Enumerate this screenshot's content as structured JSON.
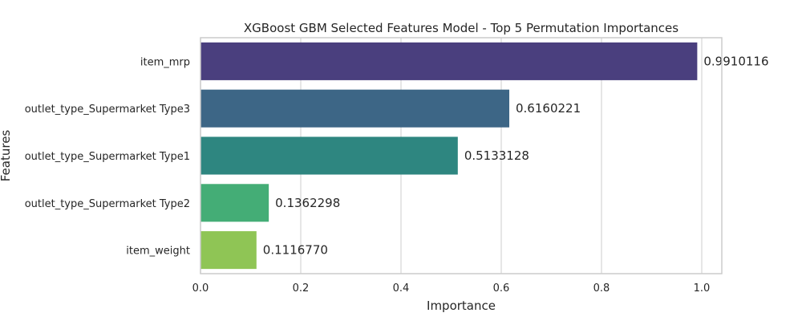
{
  "chart_data": {
    "type": "bar",
    "orientation": "horizontal",
    "title": "XGBoost GBM Selected Features Model - Top 5 Permutation Importances",
    "xlabel": "Importance",
    "ylabel": "Features",
    "xlim": [
      0,
      1.04
    ],
    "xticks": [
      0.0,
      0.2,
      0.4,
      0.6,
      0.8,
      1.0
    ],
    "xtick_labels": [
      "0.0",
      "0.2",
      "0.4",
      "0.6",
      "0.8",
      "1.0"
    ],
    "grid": true,
    "categories": [
      "item_mrp",
      "outlet_type_Supermarket Type3",
      "outlet_type_Supermarket Type1",
      "outlet_type_Supermarket Type2",
      "item_weight"
    ],
    "values": [
      0.9910116,
      0.6160221,
      0.5133128,
      0.1362298,
      0.111677
    ],
    "value_labels": [
      "0.9910116",
      "0.6160221",
      "0.5133128",
      "0.1362298",
      "0.1116770"
    ],
    "colors": [
      "#4a3f7e",
      "#3d6686",
      "#2e8680",
      "#44ad76",
      "#8fc555"
    ]
  }
}
